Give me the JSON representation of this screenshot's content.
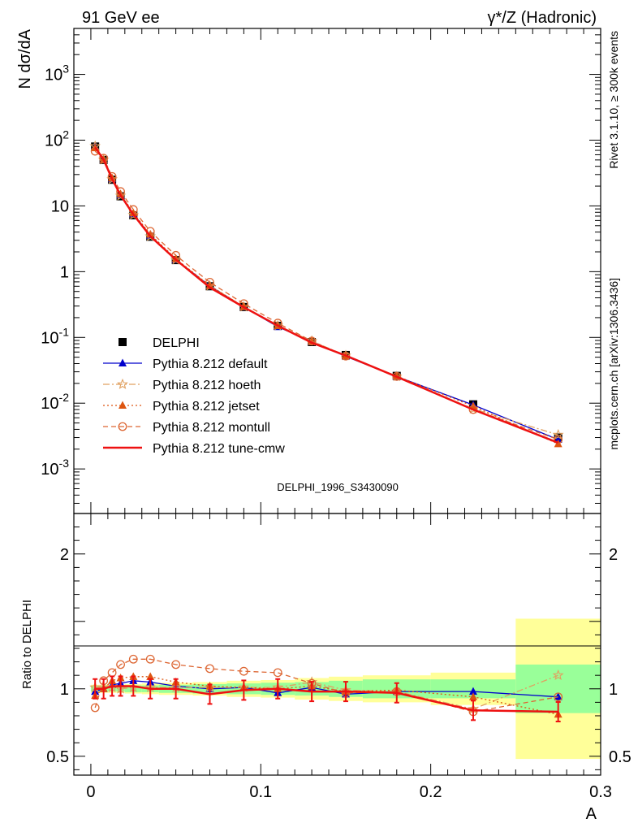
{
  "header": {
    "left": "91 GeV ee",
    "right": "γ*/Z (Hadronic)"
  },
  "side_labels": {
    "rivet": "Rivet 3.1.10, ≥ 300k events",
    "mcplots": "mcplots.cern.ch [arXiv:1306.3436]"
  },
  "watermark": "DELPHI_1996_S3430090",
  "chart_data": [
    {
      "type": "scatter",
      "yscale": "log",
      "ylabel": "N dσ/dA",
      "xlim": [
        -0.01,
        0.3
      ],
      "ylim": [
        0.00021,
        5000
      ],
      "y_ticks": [
        {
          "value": 1000,
          "label": "10^3"
        },
        {
          "value": 100,
          "label": "10^2"
        },
        {
          "value": 10,
          "label": "10"
        },
        {
          "value": 1,
          "label": "1"
        },
        {
          "value": 0.1,
          "label": "10^-1"
        },
        {
          "value": 0.01,
          "label": "10^-2"
        },
        {
          "value": 0.001,
          "label": "10^-3"
        }
      ],
      "legend_position": "bottom-left",
      "x": [
        0.0025,
        0.0075,
        0.0125,
        0.0175,
        0.025,
        0.035,
        0.05,
        0.07,
        0.09,
        0.11,
        0.13,
        0.15,
        0.18,
        0.225,
        0.275
      ],
      "series": [
        {
          "name": "DELPHI",
          "color": "#000000",
          "marker": "square",
          "line": "none",
          "values": [
            80,
            50,
            25,
            14,
            7.2,
            3.4,
            1.5,
            0.6,
            0.29,
            0.15,
            0.085,
            0.054,
            0.026,
            0.0096,
            0.003
          ]
        },
        {
          "name": "Pythia 8.212 default",
          "color": "#0000cc",
          "marker": "triangle",
          "line": "solid",
          "values": [
            78,
            50,
            25.7,
            14.6,
            7.6,
            3.55,
            1.52,
            0.61,
            0.29,
            0.145,
            0.086,
            0.0515,
            0.0254,
            0.0094,
            0.0028
          ]
        },
        {
          "name": "Pythia 8.212 hoeth",
          "color": "#e0a060",
          "marker": "star",
          "line": "dashdot",
          "values": [
            81,
            50.5,
            25.4,
            14.3,
            7.3,
            3.45,
            1.52,
            0.608,
            0.293,
            0.151,
            0.088,
            0.053,
            0.0254,
            0.0082,
            0.0033
          ]
        },
        {
          "name": "Pythia 8.212 jetset",
          "color": "#dd5511",
          "marker": "triangle",
          "line": "dotted",
          "values": [
            76,
            50,
            26.5,
            15.2,
            7.8,
            3.7,
            1.57,
            0.612,
            0.292,
            0.15,
            0.087,
            0.052,
            0.0258,
            0.009,
            0.0024
          ]
        },
        {
          "name": "Pythia 8.212 montull",
          "color": "#dd6633",
          "marker": "circle",
          "line": "dashed",
          "values": [
            68,
            53,
            28,
            16.5,
            8.8,
            4.1,
            1.77,
            0.69,
            0.326,
            0.165,
            0.088,
            0.052,
            0.0255,
            0.008,
            0.0028
          ]
        },
        {
          "name": "Pythia 8.212 tune-cmw",
          "color": "#ee1111",
          "marker": "none",
          "line": "solid-thick",
          "values": [
            78,
            50.5,
            25.7,
            14.5,
            7.4,
            3.45,
            1.52,
            0.575,
            0.288,
            0.151,
            0.083,
            0.053,
            0.0252,
            0.008,
            0.0025
          ]
        }
      ]
    },
    {
      "type": "line",
      "ylabel": "Ratio to DELPHI",
      "xlabel": "A",
      "xlim": [
        -0.01,
        0.3
      ],
      "ylim": [
        0.36,
        2.3
      ],
      "y_ticks": [
        {
          "value": 2,
          "label": "2"
        },
        {
          "value": 1,
          "label": "1"
        },
        {
          "value": 0.5,
          "label": "0.5"
        }
      ],
      "x_ticks": [
        {
          "value": 0,
          "label": "0"
        },
        {
          "value": 0.1,
          "label": "0.1"
        },
        {
          "value": 0.2,
          "label": "0.2"
        },
        {
          "value": 0.3,
          "label": "0.3"
        }
      ],
      "bins": [
        [
          0.0,
          0.005
        ],
        [
          0.005,
          0.01
        ],
        [
          0.01,
          0.015
        ],
        [
          0.015,
          0.02
        ],
        [
          0.02,
          0.03
        ],
        [
          0.03,
          0.04
        ],
        [
          0.04,
          0.06
        ],
        [
          0.06,
          0.08
        ],
        [
          0.08,
          0.1
        ],
        [
          0.1,
          0.12
        ],
        [
          0.12,
          0.14
        ],
        [
          0.14,
          0.16
        ],
        [
          0.16,
          0.2
        ],
        [
          0.2,
          0.25
        ],
        [
          0.25,
          0.3
        ]
      ],
      "band_stat": [
        0.02,
        0.02,
        0.02,
        0.02,
        0.025,
        0.025,
        0.03,
        0.035,
        0.04,
        0.045,
        0.05,
        0.06,
        0.07,
        0.07,
        0.18
      ],
      "band_total": [
        0.03,
        0.03,
        0.03,
        0.03,
        0.035,
        0.04,
        0.045,
        0.05,
        0.06,
        0.065,
        0.08,
        0.09,
        0.1,
        0.12,
        0.52
      ],
      "x": [
        0.0025,
        0.0075,
        0.0125,
        0.0175,
        0.025,
        0.035,
        0.05,
        0.07,
        0.09,
        0.11,
        0.13,
        0.15,
        0.18,
        0.225,
        0.275
      ],
      "series": [
        {
          "name": "Pythia 8.212 default",
          "color": "#0000cc",
          "marker": "triangle",
          "line": "solid",
          "values": [
            0.98,
            1.0,
            1.03,
            1.04,
            1.06,
            1.05,
            1.02,
            1.0,
            1.01,
            0.97,
            1.01,
            0.96,
            0.98,
            0.98,
            0.94
          ]
        },
        {
          "name": "Pythia 8.212 hoeth",
          "color": "#e0a060",
          "marker": "star",
          "line": "dashdot",
          "values": [
            1.01,
            1.01,
            1.01,
            1.0,
            1.01,
            1.01,
            1.01,
            1.01,
            1.01,
            1.01,
            1.05,
            0.99,
            0.98,
            0.85,
            1.1
          ]
        },
        {
          "name": "Pythia 8.212 jetset",
          "color": "#dd5511",
          "marker": "triangle",
          "line": "dotted",
          "values": [
            0.95,
            1.0,
            1.06,
            1.08,
            1.09,
            1.09,
            1.05,
            1.02,
            1.01,
            1.0,
            1.02,
            0.98,
            0.99,
            0.94,
            0.81
          ]
        },
        {
          "name": "Pythia 8.212 montull",
          "color": "#dd6633",
          "marker": "circle",
          "line": "dashed",
          "values": [
            0.86,
            1.06,
            1.12,
            1.18,
            1.22,
            1.22,
            1.18,
            1.15,
            1.13,
            1.12,
            1.04,
            0.97,
            0.98,
            0.83,
            0.94
          ]
        },
        {
          "name": "Pythia 8.212 tune-cmw",
          "color": "#ee1111",
          "marker": "errorbar",
          "line": "solid-thick",
          "values": [
            1.0,
            1.0,
            1.02,
            1.02,
            1.02,
            1.0,
            1.0,
            0.96,
            0.99,
            1.0,
            0.98,
            0.98,
            0.97,
            0.84,
            0.83
          ]
        }
      ]
    }
  ]
}
